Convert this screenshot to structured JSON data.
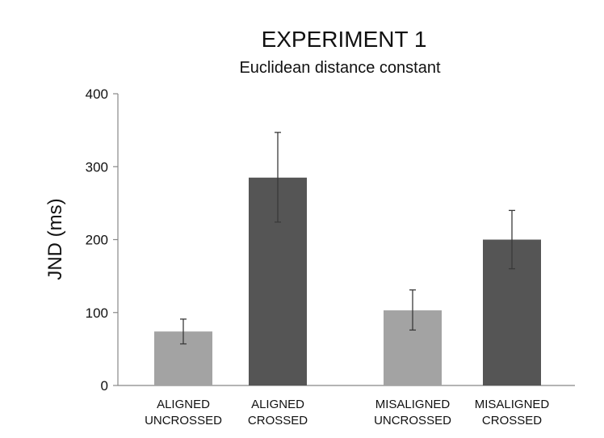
{
  "chart_data": {
    "type": "bar",
    "title": "EXPERIMENT 1",
    "subtitle": "Euclidean distance constant",
    "xlabel": "",
    "ylabel": "JND (ms)",
    "ylim": [
      0,
      400
    ],
    "yticks": [
      "0",
      "100",
      "200",
      "300",
      "400"
    ],
    "categories": [
      [
        "ALIGNED",
        "UNCROSSED"
      ],
      [
        "ALIGNED",
        "CROSSED"
      ],
      [
        "MISALIGNED",
        "UNCROSSED"
      ],
      [
        "MISALIGNED",
        "CROSSED"
      ]
    ],
    "values": [
      74,
      285,
      103,
      200
    ],
    "error_low": [
      57,
      224,
      76,
      160
    ],
    "error_high": [
      91,
      347,
      131,
      240
    ],
    "bar_colors": [
      "#a3a3a3",
      "#555555",
      "#a3a3a3",
      "#555555"
    ],
    "grid": false,
    "legend": "none"
  }
}
